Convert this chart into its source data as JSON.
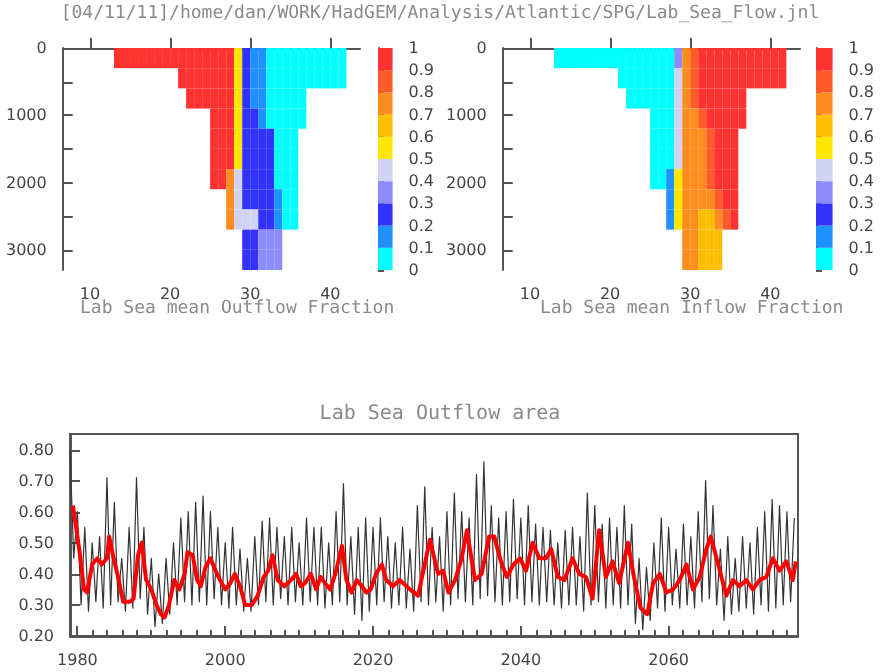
{
  "chart_data": [
    {
      "type": "heatmap",
      "title": "[04/11/11]/home/dan/WORK/HadGEM/Analysis/Atlantic/SPG/Lab_Sea_Flow.jnl",
      "xlabel": "Lab Sea mean Outflow Fraction",
      "x": [
        8.5,
        9.5,
        10.5,
        11.5,
        12.5,
        13.5,
        14.5,
        15.5,
        16.5,
        17.5,
        18.5,
        19.5,
        20.5,
        21.5,
        22.5,
        23.5,
        24.5,
        25.5,
        26.5,
        27.5,
        28.5,
        29.5,
        30.5,
        31.5,
        32.5,
        33.5,
        34.5,
        35.5,
        36.5,
        37.5,
        38.5,
        39.5,
        40.5,
        41.5
      ],
      "cells": [
        [
          null,
          null,
          null,
          null,
          null,
          0.95,
          0.95,
          0.95,
          0.95,
          0.95,
          0.95,
          0.95,
          0.95,
          0.95,
          0.95,
          0.95,
          0.95,
          0.95,
          0.95,
          0.95,
          0.55,
          0.25,
          0.15,
          0.15,
          0.05,
          0.05,
          0.05,
          0.05,
          0.05,
          0.05,
          0.05,
          0.05,
          0.05,
          0.05
        ],
        [
          null,
          null,
          null,
          null,
          null,
          null,
          null,
          null,
          null,
          null,
          null,
          null,
          null,
          0.95,
          0.95,
          0.95,
          0.95,
          0.95,
          0.95,
          0.95,
          0.55,
          0.25,
          0.15,
          0.15,
          0.05,
          0.05,
          0.05,
          0.05,
          0.05,
          0.05,
          0.05,
          0.05,
          0.05,
          0.05
        ],
        [
          null,
          null,
          null,
          null,
          null,
          null,
          null,
          null,
          null,
          null,
          null,
          null,
          null,
          null,
          0.95,
          0.95,
          0.95,
          0.95,
          0.95,
          0.95,
          0.55,
          0.25,
          0.15,
          0.15,
          0.05,
          0.05,
          0.05,
          0.05,
          0.05,
          null,
          null,
          null,
          null,
          null
        ],
        [
          null,
          null,
          null,
          null,
          null,
          null,
          null,
          null,
          null,
          null,
          null,
          null,
          null,
          null,
          null,
          null,
          null,
          0.95,
          0.95,
          0.95,
          0.55,
          0.25,
          0.25,
          0.15,
          0.05,
          0.05,
          0.05,
          0.05,
          0.05,
          null,
          null,
          null,
          null,
          null
        ],
        [
          null,
          null,
          null,
          null,
          null,
          null,
          null,
          null,
          null,
          null,
          null,
          null,
          null,
          null,
          null,
          null,
          null,
          0.95,
          0.95,
          0.95,
          0.55,
          0.25,
          0.25,
          0.25,
          0.25,
          0.05,
          0.05,
          0.05,
          null,
          null,
          null,
          null,
          null,
          null
        ],
        [
          null,
          null,
          null,
          null,
          null,
          null,
          null,
          null,
          null,
          null,
          null,
          null,
          null,
          null,
          null,
          null,
          null,
          0.95,
          0.95,
          0.95,
          0.55,
          0.25,
          0.25,
          0.25,
          0.25,
          0.05,
          0.05,
          0.05,
          null,
          null,
          null,
          null,
          null,
          null
        ],
        [
          null,
          null,
          null,
          null,
          null,
          null,
          null,
          null,
          null,
          null,
          null,
          null,
          null,
          null,
          null,
          null,
          null,
          0.95,
          0.95,
          0.75,
          0.45,
          0.25,
          0.25,
          0.25,
          0.25,
          0.05,
          0.05,
          0.05,
          null,
          null,
          null,
          null,
          null,
          null
        ],
        [
          null,
          null,
          null,
          null,
          null,
          null,
          null,
          null,
          null,
          null,
          null,
          null,
          null,
          null,
          null,
          null,
          null,
          null,
          null,
          0.75,
          0.45,
          0.25,
          0.25,
          0.25,
          0.25,
          0.15,
          0.05,
          0.05,
          null,
          null,
          null,
          null,
          null,
          null
        ],
        [
          null,
          null,
          null,
          null,
          null,
          null,
          null,
          null,
          null,
          null,
          null,
          null,
          null,
          null,
          null,
          null,
          null,
          null,
          null,
          0.75,
          0.45,
          0.45,
          0.45,
          0.25,
          0.25,
          0.15,
          0.05,
          0.05,
          null,
          null,
          null,
          null,
          null,
          null
        ],
        [
          null,
          null,
          null,
          null,
          null,
          null,
          null,
          null,
          null,
          null,
          null,
          null,
          null,
          null,
          null,
          null,
          null,
          null,
          null,
          null,
          null,
          0.25,
          0.25,
          0.35,
          0.35,
          0.35,
          null,
          null,
          null,
          null,
          null,
          null,
          null,
          null
        ],
        [
          null,
          null,
          null,
          null,
          null,
          null,
          null,
          null,
          null,
          null,
          null,
          null,
          null,
          null,
          null,
          null,
          null,
          null,
          null,
          null,
          null,
          0.25,
          0.25,
          0.35,
          0.35,
          0.35,
          null,
          null,
          null,
          null,
          null,
          null,
          null,
          null
        ]
      ],
      "xlim": [
        6.6,
        43.7
      ],
      "xticks": [
        10,
        20,
        30,
        40
      ],
      "ylim": [
        3300,
        0
      ],
      "yticks": [
        0,
        {
          "value": 500,
          "label": null
        },
        1000,
        {
          "value": 1500,
          "label": null
        },
        2000,
        {
          "value": 2500,
          "label": null
        },
        3000
      ],
      "clim": [
        0,
        1
      ],
      "cticks": [
        0,
        0.1,
        0.2,
        0.3,
        0.4,
        0.5,
        0.6,
        0.7,
        0.8,
        0.9,
        1
      ],
      "colors": [
        "#00ffff",
        "#1e90ff",
        "#3232ff",
        "#8c8cff",
        "#d2d2f5",
        "#ffe600",
        "#ffbe00",
        "#ff8c1e",
        "#ff5a28",
        "#ff3232"
      ]
    },
    {
      "type": "heatmap",
      "xlabel": "Lab Sea mean Inflow Fraction",
      "x": [
        8.5,
        9.5,
        10.5,
        11.5,
        12.5,
        13.5,
        14.5,
        15.5,
        16.5,
        17.5,
        18.5,
        19.5,
        20.5,
        21.5,
        22.5,
        23.5,
        24.5,
        25.5,
        26.5,
        27.5,
        28.5,
        29.5,
        30.5,
        31.5,
        32.5,
        33.5,
        34.5,
        35.5,
        36.5,
        37.5,
        38.5,
        39.5,
        40.5,
        41.5
      ],
      "cells": [
        [
          null,
          null,
          null,
          null,
          null,
          0.05,
          0.05,
          0.05,
          0.05,
          0.05,
          0.05,
          0.05,
          0.05,
          0.05,
          0.05,
          0.05,
          0.05,
          0.05,
          0.05,
          0.05,
          0.35,
          0.75,
          0.85,
          0.95,
          0.95,
          0.95,
          0.95,
          0.95,
          0.95,
          0.95,
          0.95,
          0.95,
          0.95,
          0.95
        ],
        [
          null,
          null,
          null,
          null,
          null,
          null,
          null,
          null,
          null,
          null,
          null,
          null,
          null,
          0.05,
          0.05,
          0.05,
          0.05,
          0.05,
          0.05,
          0.05,
          0.45,
          0.75,
          0.85,
          0.95,
          0.95,
          0.95,
          0.95,
          0.95,
          0.95,
          0.95,
          0.95,
          0.95,
          0.95,
          0.95
        ],
        [
          null,
          null,
          null,
          null,
          null,
          null,
          null,
          null,
          null,
          null,
          null,
          null,
          null,
          null,
          0.05,
          0.05,
          0.05,
          0.05,
          0.05,
          0.05,
          0.45,
          0.75,
          0.85,
          0.95,
          0.95,
          0.95,
          0.95,
          0.95,
          0.95,
          null,
          null,
          null,
          null,
          null
        ],
        [
          null,
          null,
          null,
          null,
          null,
          null,
          null,
          null,
          null,
          null,
          null,
          null,
          null,
          null,
          null,
          null,
          null,
          0.05,
          0.05,
          0.05,
          0.45,
          0.75,
          0.75,
          0.85,
          0.95,
          0.95,
          0.95,
          0.95,
          0.95,
          null,
          null,
          null,
          null,
          null
        ],
        [
          null,
          null,
          null,
          null,
          null,
          null,
          null,
          null,
          null,
          null,
          null,
          null,
          null,
          null,
          null,
          null,
          null,
          0.05,
          0.05,
          0.05,
          0.45,
          0.75,
          0.75,
          0.75,
          0.85,
          0.95,
          0.95,
          0.95,
          null,
          null,
          null,
          null,
          null,
          null
        ],
        [
          null,
          null,
          null,
          null,
          null,
          null,
          null,
          null,
          null,
          null,
          null,
          null,
          null,
          null,
          null,
          null,
          null,
          0.05,
          0.05,
          0.05,
          0.45,
          0.75,
          0.75,
          0.75,
          0.85,
          0.95,
          0.95,
          0.95,
          null,
          null,
          null,
          null,
          null,
          null
        ],
        [
          null,
          null,
          null,
          null,
          null,
          null,
          null,
          null,
          null,
          null,
          null,
          null,
          null,
          null,
          null,
          null,
          null,
          0.05,
          0.05,
          0.15,
          0.55,
          0.75,
          0.75,
          0.75,
          0.85,
          0.95,
          0.95,
          0.95,
          null,
          null,
          null,
          null,
          null,
          null
        ],
        [
          null,
          null,
          null,
          null,
          null,
          null,
          null,
          null,
          null,
          null,
          null,
          null,
          null,
          null,
          null,
          null,
          null,
          null,
          null,
          0.15,
          0.55,
          0.75,
          0.75,
          0.75,
          0.75,
          0.85,
          0.95,
          0.95,
          null,
          null,
          null,
          null,
          null,
          null
        ],
        [
          null,
          null,
          null,
          null,
          null,
          null,
          null,
          null,
          null,
          null,
          null,
          null,
          null,
          null,
          null,
          null,
          null,
          null,
          null,
          0.15,
          0.55,
          0.75,
          0.75,
          0.65,
          0.65,
          0.75,
          0.85,
          0.95,
          null,
          null,
          null,
          null,
          null,
          null
        ],
        [
          null,
          null,
          null,
          null,
          null,
          null,
          null,
          null,
          null,
          null,
          null,
          null,
          null,
          null,
          null,
          null,
          null,
          null,
          null,
          null,
          null,
          0.75,
          0.75,
          0.65,
          0.65,
          0.65,
          null,
          null,
          null,
          null,
          null,
          null,
          null,
          null
        ],
        [
          null,
          null,
          null,
          null,
          null,
          null,
          null,
          null,
          null,
          null,
          null,
          null,
          null,
          null,
          null,
          null,
          null,
          null,
          null,
          null,
          null,
          0.75,
          0.75,
          0.65,
          0.65,
          0.65,
          null,
          null,
          null,
          null,
          null,
          null,
          null,
          null
        ]
      ],
      "xlim": [
        6.6,
        43.7
      ],
      "xticks": [
        10,
        20,
        30,
        40
      ],
      "ylim": [
        3300,
        0
      ],
      "yticks": [
        0,
        {
          "value": 500,
          "label": null
        },
        1000,
        {
          "value": 1500,
          "label": null
        },
        2000,
        {
          "value": 2500,
          "label": null
        },
        3000
      ],
      "clim": [
        0,
        1
      ],
      "cticks": [
        0,
        0.1,
        0.2,
        0.3,
        0.4,
        0.5,
        0.6,
        0.7,
        0.8,
        0.9,
        1
      ],
      "colors": [
        "#00ffff",
        "#1e90ff",
        "#3232ff",
        "#8c8cff",
        "#d2d2f5",
        "#ffe600",
        "#ffbe00",
        "#ff8c1e",
        "#ff5a28",
        "#ff3232"
      ]
    },
    {
      "type": "line",
      "title": "Lab Sea Outflow area",
      "series": [
        {
          "color": "#333333",
          "x": [
            1979,
            1979.5,
            1980,
            1980.5,
            1981,
            1981.5,
            1982,
            1982.5,
            1983,
            1983.5,
            1984,
            1984.5,
            1985,
            1985.5,
            1986,
            1986.5,
            1987,
            1987.5,
            1988,
            1988.5,
            1989,
            1989.5,
            1990,
            1990.5,
            1991,
            1991.5,
            1992,
            1992.5,
            1993,
            1993.5,
            1994,
            1994.5,
            1995,
            1995.5,
            1996,
            1996.5,
            1997,
            1997.5,
            1998,
            1998.5,
            1999,
            1999.5,
            2000,
            2000.5,
            2001,
            2001.5,
            2002,
            2002.5,
            2003,
            2003.5,
            2004,
            2004.5,
            2005,
            2005.5,
            2006,
            2006.5,
            2007,
            2007.5,
            2008,
            2008.5,
            2009,
            2009.5,
            2010,
            2010.5,
            2011,
            2011.5,
            2012,
            2012.5,
            2013,
            2013.5,
            2014,
            2014.5,
            2015,
            2015.5,
            2016,
            2016.5,
            2017,
            2017.5,
            2018,
            2018.5,
            2019,
            2019.5,
            2020,
            2020.5,
            2021,
            2021.5,
            2022,
            2022.5,
            2023,
            2023.5,
            2024,
            2024.5,
            2025,
            2025.5,
            2026,
            2026.5,
            2027,
            2027.5,
            2028,
            2028.5,
            2029,
            2029.5,
            2030,
            2030.5,
            2031,
            2031.5,
            2032,
            2032.5,
            2033,
            2033.5,
            2034,
            2034.5,
            2035,
            2035.5,
            2036,
            2036.5,
            2037,
            2037.5,
            2038,
            2038.5,
            2039,
            2039.5,
            2040,
            2040.5,
            2041,
            2041.5,
            2042,
            2042.5,
            2043,
            2043.5,
            2044,
            2044.5,
            2045,
            2045.5,
            2046,
            2046.5,
            2047,
            2047.5,
            2048,
            2048.5,
            2049,
            2049.5,
            2050,
            2050.5,
            2051,
            2051.5,
            2052,
            2052.5,
            2053,
            2053.5,
            2054,
            2054.5,
            2055,
            2055.5,
            2056,
            2056.5,
            2057,
            2057.5,
            2058,
            2058.5,
            2059,
            2059.5,
            2060,
            2060.5,
            2061,
            2061.5,
            2062,
            2062.5,
            2063,
            2063.5,
            2064,
            2064.5,
            2065,
            2065.5,
            2066,
            2066.5,
            2067,
            2067.5,
            2068,
            2068.5,
            2069,
            2069.5,
            2070,
            2070.5,
            2071,
            2071.5,
            2072,
            2072.5,
            2073,
            2073.5,
            2074,
            2074.5,
            2075,
            2075.5,
            2076,
            2076.5,
            2077
          ],
          "values": [
            0.8,
            0.45,
            0.6,
            0.3,
            0.55,
            0.28,
            0.5,
            0.31,
            0.52,
            0.29,
            0.71,
            0.3,
            0.63,
            0.31,
            0.45,
            0.28,
            0.55,
            0.29,
            0.71,
            0.32,
            0.55,
            0.27,
            0.45,
            0.23,
            0.4,
            0.24,
            0.45,
            0.27,
            0.5,
            0.3,
            0.58,
            0.31,
            0.6,
            0.3,
            0.63,
            0.31,
            0.65,
            0.3,
            0.6,
            0.32,
            0.55,
            0.3,
            0.5,
            0.29,
            0.55,
            0.3,
            0.48,
            0.28,
            0.45,
            0.28,
            0.52,
            0.3,
            0.57,
            0.31,
            0.58,
            0.3,
            0.55,
            0.32,
            0.52,
            0.3,
            0.55,
            0.31,
            0.5,
            0.3,
            0.58,
            0.31,
            0.55,
            0.3,
            0.55,
            0.29,
            0.5,
            0.3,
            0.6,
            0.31,
            0.69,
            0.3,
            0.52,
            0.27,
            0.55,
            0.25,
            0.58,
            0.28,
            0.55,
            0.3,
            0.58,
            0.31,
            0.52,
            0.29,
            0.5,
            0.3,
            0.55,
            0.29,
            0.48,
            0.28,
            0.62,
            0.31,
            0.68,
            0.3,
            0.55,
            0.31,
            0.52,
            0.28,
            0.6,
            0.3,
            0.66,
            0.32,
            0.6,
            0.31,
            0.58,
            0.3,
            0.72,
            0.32,
            0.76,
            0.33,
            0.62,
            0.31,
            0.58,
            0.3,
            0.6,
            0.31,
            0.64,
            0.32,
            0.58,
            0.3,
            0.62,
            0.31,
            0.56,
            0.3,
            0.55,
            0.31,
            0.54,
            0.3,
            0.5,
            0.29,
            0.54,
            0.3,
            0.55,
            0.3,
            0.52,
            0.28,
            0.66,
            0.3,
            0.62,
            0.31,
            0.56,
            0.29,
            0.58,
            0.3,
            0.55,
            0.29,
            0.62,
            0.3,
            0.56,
            0.24,
            0.45,
            0.22,
            0.42,
            0.25,
            0.5,
            0.29,
            0.58,
            0.28,
            0.55,
            0.3,
            0.48,
            0.29,
            0.56,
            0.3,
            0.52,
            0.29,
            0.6,
            0.31,
            0.7,
            0.32,
            0.62,
            0.3,
            0.48,
            0.25,
            0.52,
            0.27,
            0.45,
            0.28,
            0.52,
            0.29,
            0.5,
            0.27,
            0.55,
            0.3,
            0.6,
            0.28,
            0.64,
            0.29,
            0.62,
            0.3,
            0.6,
            0.31,
            0.58
          ]
        },
        {
          "color": "#ff0000",
          "x": [
            1979.4,
            1980.3,
            1980.9,
            1981.3,
            1982.0,
            1982.7,
            1983.3,
            1984.0,
            1984.3,
            1984.9,
            1985.6,
            1986.2,
            1987.1,
            1987.6,
            1988.2,
            1988.7,
            1989.3,
            1990.0,
            1990.7,
            1991.3,
            1991.8,
            1992.4,
            1993.1,
            1993.8,
            1994.5,
            1994.9,
            1995.6,
            1996.2,
            1996.7,
            1997.3,
            1998.0,
            1998.7,
            1999.3,
            2000.0,
            2000.7,
            2001.3,
            2002.0,
            2002.7,
            2003.6,
            2004.4,
            2005.2,
            2005.8,
            2006.4,
            2007.1,
            2008.0,
            2008.9,
            2009.6,
            2010.2,
            2010.8,
            2011.6,
            2012.3,
            2012.9,
            2013.5,
            2014.2,
            2014.9,
            2015.8,
            2016.4,
            2017.1,
            2017.8,
            2018.5,
            2019.1,
            2019.7,
            2020.4,
            2021.2,
            2021.8,
            2022.7,
            2023.6,
            2025.0,
            2026.1,
            2027.7,
            2028.8,
            2029.5,
            2030.2,
            2031.1,
            2032.0,
            2032.7,
            2033.8,
            2034.7,
            2035.7,
            2036.4,
            2037.3,
            2038.1,
            2039.0,
            2039.9,
            2040.7,
            2041.6,
            2042.5,
            2043.4,
            2044.1,
            2045.0,
            2045.9,
            2047.0,
            2047.9,
            2048.8,
            2049.7,
            2050.6,
            2051.5,
            2052.4,
            2053.3,
            2054.5,
            2055.3,
            2056.2,
            2057.1,
            2057.9,
            2058.8,
            2059.7,
            2060.6,
            2061.5,
            2062.4,
            2063.3,
            2064.2,
            2065.1,
            2065.7,
            2066.7,
            2067.8,
            2068.7,
            2069.6,
            2070.5,
            2071.4,
            2072.3,
            2073.2,
            2074.1,
            2075.0,
            2075.9,
            2076.8,
            2077.2
          ],
          "values": [
            0.62,
            0.47,
            0.35,
            0.34,
            0.43,
            0.45,
            0.43,
            0.45,
            0.52,
            0.45,
            0.38,
            0.31,
            0.31,
            0.32,
            0.46,
            0.5,
            0.38,
            0.35,
            0.3,
            0.27,
            0.26,
            0.3,
            0.38,
            0.35,
            0.4,
            0.47,
            0.46,
            0.38,
            0.36,
            0.42,
            0.45,
            0.41,
            0.38,
            0.35,
            0.37,
            0.4,
            0.36,
            0.3,
            0.3,
            0.33,
            0.39,
            0.41,
            0.46,
            0.38,
            0.36,
            0.38,
            0.4,
            0.36,
            0.37,
            0.4,
            0.35,
            0.39,
            0.37,
            0.35,
            0.4,
            0.49,
            0.38,
            0.34,
            0.38,
            0.36,
            0.34,
            0.35,
            0.4,
            0.43,
            0.38,
            0.36,
            0.38,
            0.35,
            0.33,
            0.51,
            0.4,
            0.41,
            0.34,
            0.38,
            0.45,
            0.54,
            0.38,
            0.4,
            0.52,
            0.52,
            0.44,
            0.39,
            0.43,
            0.45,
            0.41,
            0.5,
            0.45,
            0.45,
            0.48,
            0.39,
            0.38,
            0.45,
            0.4,
            0.39,
            0.32,
            0.54,
            0.39,
            0.44,
            0.37,
            0.5,
            0.39,
            0.29,
            0.27,
            0.37,
            0.4,
            0.34,
            0.35,
            0.38,
            0.43,
            0.35,
            0.39,
            0.48,
            0.52,
            0.43,
            0.33,
            0.38,
            0.36,
            0.38,
            0.35,
            0.38,
            0.39,
            0.45,
            0.41,
            0.44,
            0.38,
            0.44
          ]
        }
      ],
      "xlim": [
        1979,
        2077.5
      ],
      "xticks": [
        1980,
        2000,
        2020,
        2040,
        2060
      ],
      "ylim": [
        0.2,
        0.85
      ],
      "yticks": [
        {
          "value": 0.2,
          "label": "0.20"
        },
        {
          "value": 0.3,
          "label": "0.30"
        },
        {
          "value": 0.4,
          "label": "0.40"
        },
        {
          "value": 0.5,
          "label": "0.50"
        },
        {
          "value": 0.6,
          "label": "0.60"
        },
        {
          "value": 0.7,
          "label": "0.70"
        },
        {
          "value": 0.8,
          "label": "0.80"
        }
      ]
    }
  ]
}
